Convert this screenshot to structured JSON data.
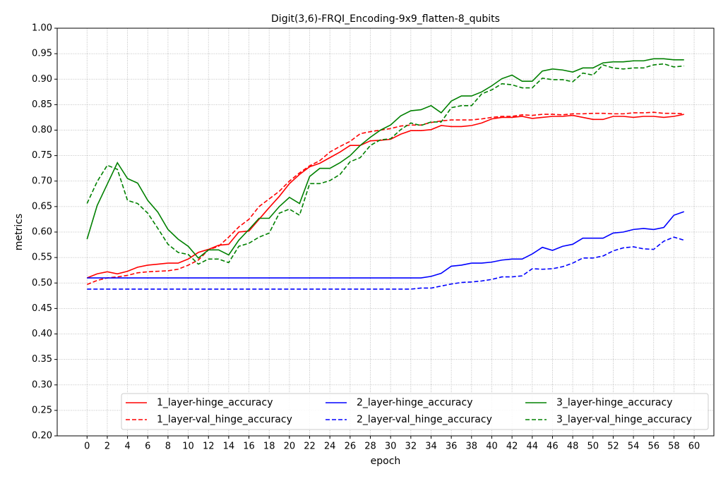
{
  "chart_data": {
    "type": "line",
    "title": "Digit(3,6)-FRQI_Encoding-9x9_flatten-8_qubits",
    "x_label": "epoch",
    "y_label": "metrics",
    "grid": true,
    "legend": "lower center",
    "x": [
      0,
      1,
      2,
      3,
      4,
      5,
      6,
      7,
      8,
      9,
      10,
      11,
      12,
      13,
      14,
      15,
      16,
      17,
      18,
      19,
      20,
      21,
      22,
      23,
      24,
      25,
      26,
      27,
      28,
      29,
      30,
      31,
      32,
      33,
      34,
      35,
      36,
      37,
      38,
      39,
      40,
      41,
      42,
      43,
      44,
      45,
      46,
      47,
      48,
      49,
      50,
      51,
      52,
      53,
      54,
      55,
      56,
      57,
      58,
      59
    ],
    "xlim": [
      -2.95,
      61.95
    ],
    "xticks": [
      0,
      2,
      4,
      6,
      8,
      10,
      12,
      14,
      16,
      18,
      20,
      22,
      24,
      26,
      28,
      30,
      32,
      34,
      36,
      38,
      40,
      42,
      44,
      46,
      48,
      50,
      52,
      54,
      56,
      58,
      60
    ],
    "ylim": [
      0.2,
      1.0
    ],
    "yticks": [
      {
        "value": 0.2,
        "label": "0.20"
      },
      {
        "value": 0.25,
        "label": "0.25"
      },
      {
        "value": 0.3,
        "label": "0.30"
      },
      {
        "value": 0.35,
        "label": "0.35"
      },
      {
        "value": 0.4,
        "label": "0.40"
      },
      {
        "value": 0.45,
        "label": "0.45"
      },
      {
        "value": 0.5,
        "label": "0.50"
      },
      {
        "value": 0.55,
        "label": "0.55"
      },
      {
        "value": 0.6,
        "label": "0.60"
      },
      {
        "value": 0.65,
        "label": "0.65"
      },
      {
        "value": 0.7,
        "label": "0.70"
      },
      {
        "value": 0.75,
        "label": "0.75"
      },
      {
        "value": 0.8,
        "label": "0.80"
      },
      {
        "value": 0.85,
        "label": "0.85"
      },
      {
        "value": 0.9,
        "label": "0.90"
      },
      {
        "value": 0.95,
        "label": "0.95"
      },
      {
        "value": 1.0,
        "label": "1.00"
      }
    ],
    "series": [
      {
        "name": "1_layer-hinge_accuracy",
        "color": "#ff0000",
        "dashed": false,
        "values": [
          0.51,
          0.518,
          0.522,
          0.518,
          0.523,
          0.531,
          0.535,
          0.537,
          0.539,
          0.539,
          0.547,
          0.56,
          0.566,
          0.574,
          0.576,
          0.6,
          0.602,
          0.625,
          0.648,
          0.67,
          0.695,
          0.713,
          0.728,
          0.735,
          0.746,
          0.757,
          0.77,
          0.77,
          0.779,
          0.78,
          0.782,
          0.792,
          0.799,
          0.799,
          0.801,
          0.809,
          0.807,
          0.807,
          0.809,
          0.814,
          0.822,
          0.825,
          0.825,
          0.827,
          0.823,
          0.825,
          0.827,
          0.827,
          0.829,
          0.825,
          0.821,
          0.821,
          0.827,
          0.827,
          0.825,
          0.827,
          0.827,
          0.825,
          0.827,
          0.831
        ]
      },
      {
        "name": "1_layer-val_hinge_accuracy",
        "color": "#ff0000",
        "dashed": true,
        "values": [
          0.497,
          0.505,
          0.51,
          0.512,
          0.515,
          0.52,
          0.522,
          0.523,
          0.524,
          0.527,
          0.535,
          0.545,
          0.565,
          0.572,
          0.59,
          0.61,
          0.625,
          0.65,
          0.665,
          0.68,
          0.7,
          0.716,
          0.73,
          0.74,
          0.757,
          0.768,
          0.778,
          0.793,
          0.797,
          0.8,
          0.803,
          0.808,
          0.81,
          0.81,
          0.815,
          0.818,
          0.82,
          0.82,
          0.82,
          0.822,
          0.825,
          0.827,
          0.827,
          0.83,
          0.829,
          0.831,
          0.831,
          0.83,
          0.832,
          0.832,
          0.833,
          0.833,
          0.832,
          0.832,
          0.834,
          0.834,
          0.835,
          0.833,
          0.833,
          0.832
        ]
      },
      {
        "name": "2_layer-hinge_accuracy",
        "color": "#0000ff",
        "dashed": false,
        "values": [
          0.51,
          0.51,
          0.51,
          0.51,
          0.51,
          0.51,
          0.51,
          0.51,
          0.51,
          0.51,
          0.51,
          0.51,
          0.51,
          0.51,
          0.51,
          0.51,
          0.51,
          0.51,
          0.51,
          0.51,
          0.51,
          0.51,
          0.51,
          0.51,
          0.51,
          0.51,
          0.51,
          0.51,
          0.51,
          0.51,
          0.51,
          0.51,
          0.51,
          0.51,
          0.513,
          0.519,
          0.533,
          0.535,
          0.539,
          0.539,
          0.541,
          0.545,
          0.547,
          0.547,
          0.557,
          0.57,
          0.564,
          0.572,
          0.576,
          0.588,
          0.588,
          0.588,
          0.598,
          0.6,
          0.605,
          0.607,
          0.605,
          0.609,
          0.633,
          0.64
        ]
      },
      {
        "name": "2_layer-val_hinge_accuracy",
        "color": "#0000ff",
        "dashed": true,
        "values": [
          0.488,
          0.488,
          0.488,
          0.488,
          0.488,
          0.488,
          0.488,
          0.488,
          0.488,
          0.488,
          0.488,
          0.488,
          0.488,
          0.488,
          0.488,
          0.488,
          0.488,
          0.488,
          0.488,
          0.488,
          0.488,
          0.488,
          0.488,
          0.488,
          0.488,
          0.488,
          0.488,
          0.488,
          0.488,
          0.488,
          0.488,
          0.488,
          0.488,
          0.49,
          0.49,
          0.494,
          0.498,
          0.501,
          0.502,
          0.504,
          0.507,
          0.512,
          0.512,
          0.514,
          0.528,
          0.527,
          0.528,
          0.532,
          0.539,
          0.549,
          0.549,
          0.553,
          0.563,
          0.569,
          0.571,
          0.567,
          0.566,
          0.582,
          0.59,
          0.584
        ]
      },
      {
        "name": "3_layer-hinge_accuracy",
        "color": "#008000",
        "dashed": false,
        "values": [
          0.586,
          0.652,
          0.694,
          0.736,
          0.705,
          0.696,
          0.662,
          0.639,
          0.605,
          0.586,
          0.572,
          0.549,
          0.565,
          0.565,
          0.555,
          0.584,
          0.605,
          0.627,
          0.627,
          0.65,
          0.668,
          0.656,
          0.709,
          0.725,
          0.725,
          0.736,
          0.75,
          0.77,
          0.786,
          0.8,
          0.81,
          0.828,
          0.838,
          0.84,
          0.848,
          0.834,
          0.857,
          0.867,
          0.867,
          0.875,
          0.887,
          0.901,
          0.908,
          0.896,
          0.896,
          0.916,
          0.92,
          0.918,
          0.914,
          0.922,
          0.922,
          0.932,
          0.934,
          0.934,
          0.936,
          0.936,
          0.94,
          0.94,
          0.938,
          0.938
        ]
      },
      {
        "name": "3_layer-val_hinge_accuracy",
        "color": "#008000",
        "dashed": true,
        "values": [
          0.656,
          0.699,
          0.731,
          0.723,
          0.662,
          0.656,
          0.637,
          0.607,
          0.576,
          0.56,
          0.556,
          0.537,
          0.547,
          0.547,
          0.54,
          0.572,
          0.578,
          0.59,
          0.598,
          0.637,
          0.645,
          0.633,
          0.695,
          0.695,
          0.701,
          0.713,
          0.738,
          0.746,
          0.77,
          0.781,
          0.783,
          0.801,
          0.814,
          0.809,
          0.816,
          0.816,
          0.844,
          0.848,
          0.848,
          0.871,
          0.879,
          0.891,
          0.889,
          0.883,
          0.883,
          0.902,
          0.899,
          0.899,
          0.895,
          0.912,
          0.908,
          0.928,
          0.922,
          0.92,
          0.922,
          0.922,
          0.928,
          0.93,
          0.924,
          0.926
        ]
      }
    ]
  }
}
